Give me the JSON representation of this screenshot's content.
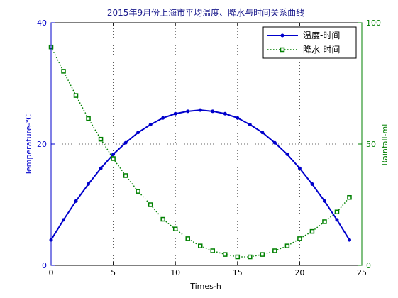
{
  "chart_data": {
    "type": "line",
    "title": "2015年9月份上海市平均温度、降水与时间关系曲线",
    "xlabel": "Times-h",
    "ylabel_left": "Temperature-℃",
    "ylabel_right": "Rainfall-ml",
    "xlim": [
      0,
      25
    ],
    "ylim_left": [
      0,
      40
    ],
    "ylim_right": [
      0,
      100
    ],
    "x_ticks": [
      0,
      5,
      10,
      15,
      20,
      25
    ],
    "y_left_ticks": [
      0,
      20,
      40
    ],
    "y_right_ticks": [
      0,
      50,
      100
    ],
    "grid": "dotted",
    "legend_position": "top-right",
    "colors": {
      "temperature": "#0000cc",
      "rainfall": "#008000",
      "left_axis": "#0000cc",
      "right_axis": "#008000",
      "grid": "#333333"
    },
    "series": [
      {
        "name": "温度-时间",
        "axis": "left",
        "style": "solid",
        "marker": "dot",
        "x": [
          0,
          1,
          2,
          3,
          4,
          5,
          6,
          7,
          8,
          9,
          10,
          11,
          12,
          13,
          14,
          15,
          16,
          17,
          18,
          19,
          20,
          21,
          22,
          23,
          24
        ],
        "values": [
          4.2,
          7.5,
          10.6,
          13.4,
          16.0,
          18.3,
          20.2,
          21.9,
          23.2,
          24.3,
          25.0,
          25.4,
          25.6,
          25.4,
          25.0,
          24.3,
          23.2,
          21.9,
          20.2,
          18.3,
          16.0,
          13.4,
          10.6,
          7.5,
          4.2
        ]
      },
      {
        "name": "降水-时间",
        "axis": "right",
        "style": "dotted",
        "marker": "square",
        "x": [
          0,
          1,
          2,
          3,
          4,
          5,
          6,
          7,
          8,
          9,
          10,
          11,
          12,
          13,
          14,
          15,
          16,
          17,
          18,
          19,
          20,
          21,
          22,
          23,
          24
        ],
        "values": [
          90,
          80,
          70,
          60.5,
          52,
          44,
          37,
          30.5,
          25,
          19,
          15,
          11,
          8,
          6,
          4.5,
          3.5,
          3.5,
          4.5,
          6,
          8,
          11,
          14,
          18,
          22,
          28
        ]
      }
    ]
  }
}
